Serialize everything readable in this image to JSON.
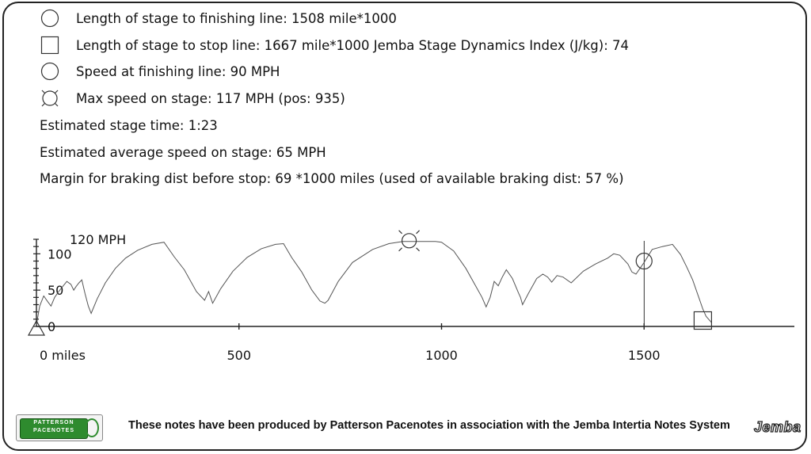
{
  "legend": {
    "finish": "Length of stage to finishing line: 1508 mile*1000",
    "stop": "Length of stage to stop line: 1667 mile*1000 Jemba Stage Dynamics Index (J/kg): 74",
    "speed_finish": "Speed at finishing line: 90 MPH",
    "max_speed": "Max speed on stage: 117 MPH (pos: 935)"
  },
  "info": {
    "stage_time": "Estimated stage time: 1:23",
    "avg_speed": "Estimated average speed on stage: 65 MPH",
    "margin": "Margin for braking dist before stop: 69 *1000 miles (used of available braking dist: 57 %)"
  },
  "footer": {
    "text": "These notes have been produced by Patterson Pacenotes in association with the Jemba Intertia Notes System",
    "logo_left_line1": "PATTERSON",
    "logo_left_line2": "PACENOTES",
    "logo_right": "Jemba"
  },
  "chart_data": {
    "type": "line",
    "title": "",
    "xlabel": "",
    "ylabel": "120 MPH",
    "x_unit_label": "miles",
    "xlim": [
      -15,
      1830
    ],
    "ylim": [
      0,
      120
    ],
    "x_ticks": [
      0,
      500,
      1000,
      1500
    ],
    "x_tick_labels": [
      "0 miles",
      "500",
      "1000",
      "1500"
    ],
    "y_ticks": [
      0,
      50,
      100
    ],
    "y_tick_labels": [
      "0",
      "50",
      "100"
    ],
    "grid": false,
    "series": [
      {
        "x": [
          0,
          8,
          18,
          28,
          36,
          45,
          55,
          65,
          75,
          85,
          92,
          98,
          105,
          112,
          120,
          128,
          135,
          150,
          170,
          195,
          220,
          250,
          285,
          315,
          340,
          365,
          395,
          415,
          425,
          435,
          455,
          485,
          520,
          555,
          590,
          610,
          630,
          655,
          680,
          700,
          712,
          720,
          745,
          780,
          830,
          870,
          905,
          935,
          960,
          985,
          1000,
          1030,
          1060,
          1080,
          1100,
          1110,
          1120,
          1130,
          1140,
          1150,
          1160,
          1175,
          1190,
          1195,
          1200,
          1215,
          1235,
          1250,
          1262,
          1272,
          1285,
          1300,
          1320,
          1350,
          1380,
          1410,
          1425,
          1440,
          1460,
          1470,
          1480,
          1500,
          1520,
          1545,
          1570,
          1590,
          1605,
          1620,
          1635,
          1645,
          1653,
          1667
        ],
        "y": [
          2,
          28,
          42,
          34,
          28,
          40,
          48,
          55,
          62,
          58,
          50,
          55,
          60,
          64,
          45,
          28,
          18,
          38,
          60,
          80,
          94,
          105,
          113,
          116,
          96,
          78,
          48,
          36,
          48,
          32,
          52,
          76,
          95,
          107,
          113,
          114,
          95,
          75,
          50,
          35,
          32,
          36,
          62,
          88,
          106,
          114,
          117,
          117,
          117,
          117,
          116,
          104,
          80,
          60,
          40,
          27,
          40,
          62,
          56,
          68,
          78,
          66,
          46,
          40,
          30,
          46,
          66,
          72,
          68,
          61,
          70,
          68,
          60,
          76,
          86,
          94,
          100,
          98,
          86,
          75,
          72,
          88,
          106,
          110,
          113,
          99,
          82,
          64,
          40,
          24,
          14,
          5
        ]
      }
    ],
    "markers": [
      {
        "name": "max-speed-marker",
        "symbol": "circle-burst",
        "x": 920,
        "y": 118
      },
      {
        "name": "finish-line-marker",
        "symbol": "circle",
        "x": 1500,
        "y": 90
      },
      {
        "name": "stop-line-marker",
        "symbol": "square",
        "x": 1645,
        "y": 6
      },
      {
        "name": "start-marker",
        "symbol": "triangle",
        "x": 0,
        "y": 0
      }
    ],
    "finish_line_x": 1508
  }
}
